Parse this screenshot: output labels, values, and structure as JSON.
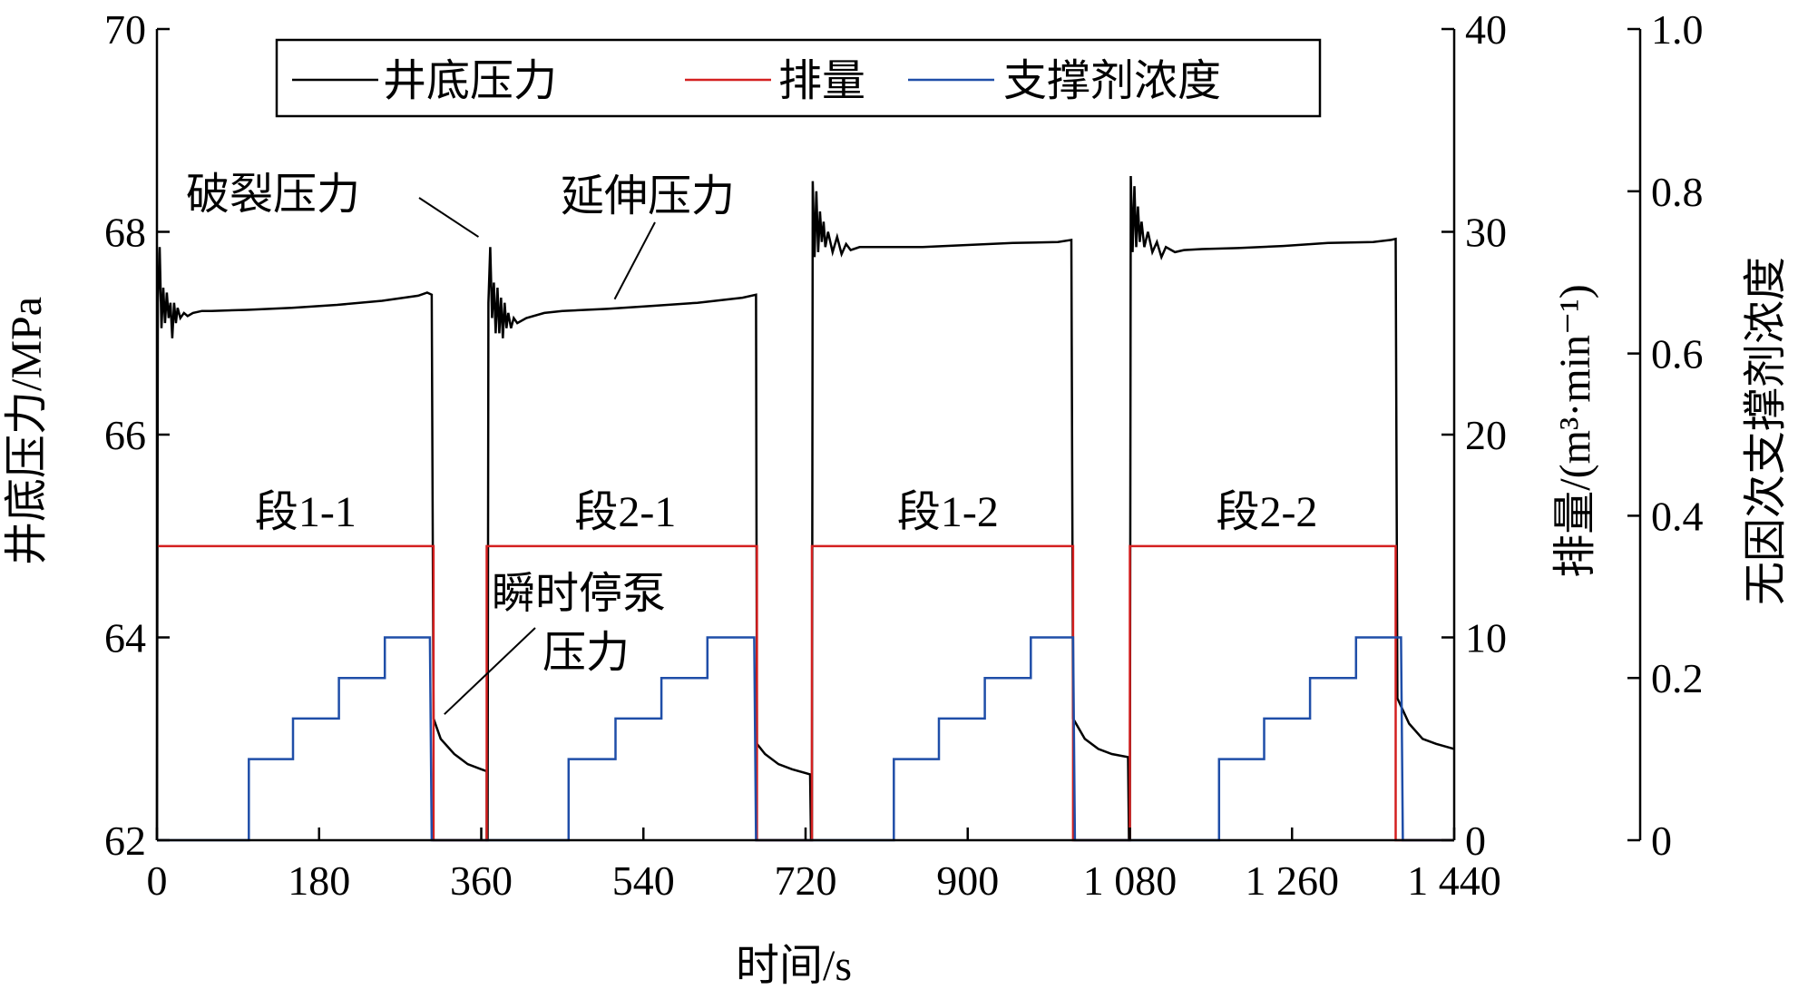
{
  "chart_data": {
    "type": "line",
    "xlabel": "时间/s",
    "ylabel_left": "井底压力/MPa",
    "ylabel_right1": "排量/(m³·min⁻¹)",
    "ylabel_right2": "无因次支撑剂浓度",
    "xlim": [
      0,
      1440
    ],
    "ylim_left": [
      62,
      70
    ],
    "ylim_right1": [
      0,
      40
    ],
    "ylim_right2": [
      0,
      1.0
    ],
    "x_ticks": [
      0,
      180,
      360,
      540,
      720,
      900,
      1080,
      1260,
      1440
    ],
    "x_tick_labels": [
      "0",
      "180",
      "360",
      "540",
      "720",
      "900",
      "1 080",
      "1 260",
      "1 440"
    ],
    "y_left_ticks": [
      62,
      64,
      66,
      68,
      70
    ],
    "y_left_tick_labels": [
      "62",
      "64",
      "66",
      "68",
      "70"
    ],
    "y_right1_ticks": [
      0,
      10,
      20,
      30,
      40
    ],
    "y_right1_tick_labels": [
      "0",
      "10",
      "20",
      "30",
      "40"
    ],
    "y_right2_ticks": [
      0,
      0.2,
      0.4,
      0.6,
      0.8,
      1.0
    ],
    "y_right2_tick_labels": [
      "0",
      "0.2",
      "0.4",
      "0.6",
      "0.8",
      "1.0"
    ],
    "grid": false,
    "legend_position": "top-center",
    "series": [
      {
        "name": "井底压力",
        "color": "#000000",
        "axis": "left",
        "points": [
          [
            0,
            62
          ],
          [
            1,
            67.3
          ],
          [
            3,
            67.85
          ],
          [
            5,
            67.05
          ],
          [
            7,
            67.45
          ],
          [
            9,
            67.1
          ],
          [
            11,
            67.4
          ],
          [
            13,
            67.15
          ],
          [
            15,
            67.3
          ],
          [
            17,
            66.95
          ],
          [
            19,
            67.3
          ],
          [
            21,
            67.1
          ],
          [
            23,
            67.25
          ],
          [
            26,
            67.15
          ],
          [
            30,
            67.2
          ],
          [
            34,
            67.17
          ],
          [
            40,
            67.2
          ],
          [
            50,
            67.22
          ],
          [
            60,
            67.22
          ],
          [
            100,
            67.23
          ],
          [
            150,
            67.25
          ],
          [
            200,
            67.28
          ],
          [
            250,
            67.32
          ],
          [
            290,
            67.37
          ],
          [
            300,
            67.4
          ],
          [
            305,
            67.38
          ],
          [
            307,
            63.2
          ],
          [
            315,
            63.0
          ],
          [
            330,
            62.85
          ],
          [
            345,
            62.75
          ],
          [
            360,
            62.7
          ],
          [
            366,
            62.68
          ],
          [
            366,
            62
          ],
          [
            367,
            62
          ],
          [
            368,
            67.3
          ],
          [
            370,
            67.85
          ],
          [
            372,
            67.15
          ],
          [
            374,
            67.5
          ],
          [
            376,
            67.0
          ],
          [
            378,
            67.45
          ],
          [
            380,
            67.0
          ],
          [
            382,
            67.35
          ],
          [
            384,
            66.95
          ],
          [
            386,
            67.3
          ],
          [
            388,
            67.05
          ],
          [
            390,
            67.2
          ],
          [
            393,
            67.05
          ],
          [
            396,
            67.15
          ],
          [
            400,
            67.1
          ],
          [
            410,
            67.15
          ],
          [
            430,
            67.2
          ],
          [
            450,
            67.22
          ],
          [
            500,
            67.24
          ],
          [
            550,
            67.27
          ],
          [
            600,
            67.3
          ],
          [
            650,
            67.35
          ],
          [
            665,
            67.38
          ],
          [
            666,
            62.95
          ],
          [
            675,
            62.85
          ],
          [
            690,
            62.75
          ],
          [
            705,
            62.7
          ],
          [
            725,
            62.65
          ],
          [
            726,
            62
          ],
          [
            727,
            62
          ],
          [
            728,
            68.5
          ],
          [
            730,
            67.75
          ],
          [
            732,
            68.4
          ],
          [
            734,
            67.8
          ],
          [
            736,
            68.2
          ],
          [
            738,
            67.9
          ],
          [
            740,
            68.1
          ],
          [
            742,
            67.85
          ],
          [
            745,
            68.0
          ],
          [
            750,
            67.8
          ],
          [
            755,
            67.95
          ],
          [
            760,
            67.78
          ],
          [
            765,
            67.88
          ],
          [
            770,
            67.82
          ],
          [
            780,
            67.85
          ],
          [
            800,
            67.85
          ],
          [
            850,
            67.85
          ],
          [
            900,
            67.87
          ],
          [
            950,
            67.89
          ],
          [
            1000,
            67.9
          ],
          [
            1015,
            67.92
          ],
          [
            1017,
            63.2
          ],
          [
            1030,
            63.0
          ],
          [
            1045,
            62.9
          ],
          [
            1060,
            62.85
          ],
          [
            1078,
            62.82
          ],
          [
            1079,
            62
          ],
          [
            1080,
            62
          ],
          [
            1081,
            68.55
          ],
          [
            1083,
            67.8
          ],
          [
            1085,
            68.45
          ],
          [
            1087,
            67.85
          ],
          [
            1089,
            68.25
          ],
          [
            1091,
            67.9
          ],
          [
            1093,
            68.1
          ],
          [
            1096,
            67.85
          ],
          [
            1100,
            68.0
          ],
          [
            1105,
            67.8
          ],
          [
            1110,
            67.9
          ],
          [
            1115,
            67.75
          ],
          [
            1120,
            67.85
          ],
          [
            1130,
            67.8
          ],
          [
            1140,
            67.82
          ],
          [
            1160,
            67.83
          ],
          [
            1200,
            67.84
          ],
          [
            1250,
            67.86
          ],
          [
            1300,
            67.89
          ],
          [
            1350,
            67.9
          ],
          [
            1370,
            67.92
          ],
          [
            1375,
            67.93
          ],
          [
            1377,
            63.4
          ],
          [
            1390,
            63.15
          ],
          [
            1405,
            63.0
          ],
          [
            1420,
            62.95
          ],
          [
            1440,
            62.9
          ]
        ]
      },
      {
        "name": "排量",
        "color": "#d42020",
        "axis": "right1",
        "points": [
          [
            0,
            14.5
          ],
          [
            307,
            14.5
          ],
          [
            307,
            0
          ],
          [
            366,
            0
          ],
          [
            366,
            14.5
          ],
          [
            666,
            14.5
          ],
          [
            666,
            0
          ],
          [
            727,
            0
          ],
          [
            727,
            14.5
          ],
          [
            1017,
            14.5
          ],
          [
            1017,
            0
          ],
          [
            1080,
            0
          ],
          [
            1080,
            14.5
          ],
          [
            1375,
            14.5
          ],
          [
            1375,
            0
          ],
          [
            1440,
            0
          ]
        ]
      },
      {
        "name": "支撑剂浓度",
        "color": "#1f4ea8",
        "axis": "right2",
        "points": [
          [
            0,
            0
          ],
          [
            102,
            0
          ],
          [
            102,
            0.1
          ],
          [
            151,
            0.1
          ],
          [
            151,
            0.15
          ],
          [
            202,
            0.15
          ],
          [
            202,
            0.2
          ],
          [
            253,
            0.2
          ],
          [
            253,
            0.25
          ],
          [
            303,
            0.25
          ],
          [
            305,
            0
          ],
          [
            457,
            0
          ],
          [
            457,
            0.1
          ],
          [
            509,
            0.1
          ],
          [
            509,
            0.15
          ],
          [
            560,
            0.15
          ],
          [
            560,
            0.2
          ],
          [
            611,
            0.2
          ],
          [
            611,
            0.25
          ],
          [
            663,
            0.25
          ],
          [
            665,
            0
          ],
          [
            818,
            0
          ],
          [
            818,
            0.1
          ],
          [
            868,
            0.1
          ],
          [
            868,
            0.15
          ],
          [
            919,
            0.15
          ],
          [
            919,
            0.2
          ],
          [
            970,
            0.2
          ],
          [
            970,
            0.25
          ],
          [
            1017,
            0.25
          ],
          [
            1019,
            0
          ],
          [
            1179,
            0
          ],
          [
            1179,
            0.1
          ],
          [
            1229,
            0.1
          ],
          [
            1229,
            0.15
          ],
          [
            1280,
            0.15
          ],
          [
            1280,
            0.2
          ],
          [
            1331,
            0.2
          ],
          [
            1331,
            0.25
          ],
          [
            1381,
            0.25
          ],
          [
            1383,
            0
          ],
          [
            1440,
            0
          ]
        ]
      }
    ],
    "annotations": [
      {
        "id": "breakdown",
        "text": "破裂压力",
        "at": [
          365,
          67.95
        ]
      },
      {
        "id": "extension",
        "text": "延伸压力",
        "at": [
          500,
          67.3
        ]
      },
      {
        "id": "isip_line1",
        "text": "瞬时停泵",
        "at": [
          313,
          63.6
        ]
      },
      {
        "id": "isip_line2",
        "text": "压力",
        "at": [
          313,
          63.6
        ]
      }
    ],
    "stage_labels": [
      {
        "text": "段1-1",
        "x": 165
      },
      {
        "text": "段2-1",
        "x": 520
      },
      {
        "text": "段1-2",
        "x": 878
      },
      {
        "text": "段2-2",
        "x": 1232
      }
    ]
  }
}
